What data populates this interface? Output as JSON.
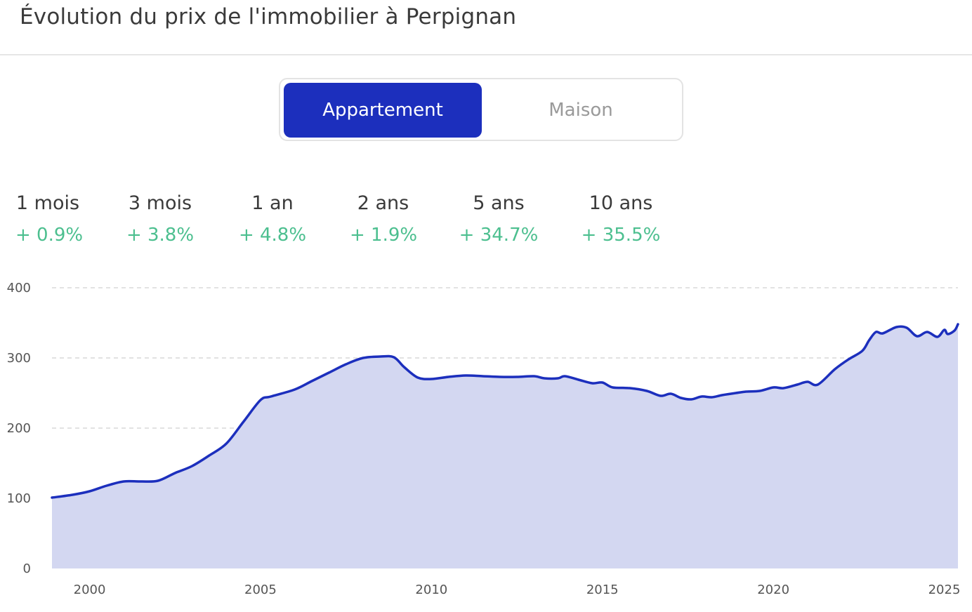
{
  "header": {
    "title": "Évolution du prix de l'immobilier à Perpignan"
  },
  "toggle": {
    "options": [
      "Appartement",
      "Maison"
    ],
    "selected": "Appartement"
  },
  "stats": [
    {
      "label": "1 mois",
      "value": "+ 0.9%"
    },
    {
      "label": "3 mois",
      "value": "+ 3.8%"
    },
    {
      "label": "1 an",
      "value": "+ 4.8%"
    },
    {
      "label": "2 ans",
      "value": "+ 1.9%"
    },
    {
      "label": "5 ans",
      "value": "+ 34.7%"
    },
    {
      "label": "10 ans",
      "value": "+ 35.5%"
    }
  ],
  "colors": {
    "accent": "#1c2fbd",
    "area_fill": "#d3d7f1",
    "positive": "#4cbf8f",
    "grid": "#d9d9d9"
  },
  "chart_data": {
    "type": "area",
    "title": "",
    "xlabel": "",
    "ylabel": "",
    "ylim": [
      0,
      400
    ],
    "xlim": [
      1998.9,
      2025.4
    ],
    "yticks": [
      0,
      100,
      200,
      300,
      400
    ],
    "xticks": [
      2000,
      2005,
      2010,
      2015,
      2020,
      2025
    ],
    "grid": true,
    "series": [
      {
        "x": [
          1998.9,
          1999.5,
          2000.0,
          2000.5,
          2001.0,
          2001.5,
          2002.0,
          2002.5,
          2003.0,
          2003.5,
          2004.0,
          2004.5,
          2005.0,
          2005.3,
          2006.0,
          2006.5,
          2007.0,
          2007.5,
          2008.0,
          2008.5,
          2008.9,
          2009.2,
          2009.6,
          2010.0,
          2010.5,
          2011.0,
          2011.5,
          2012.0,
          2012.5,
          2013.0,
          2013.3,
          2013.7,
          2013.9,
          2014.3,
          2014.7,
          2015.0,
          2015.3,
          2015.8,
          2016.3,
          2016.7,
          2017.0,
          2017.3,
          2017.6,
          2017.9,
          2018.2,
          2018.5,
          2018.9,
          2019.2,
          2019.6,
          2020.0,
          2020.3,
          2020.7,
          2021.0,
          2021.3,
          2021.8,
          2022.2,
          2022.6,
          2022.8,
          2023.0,
          2023.2,
          2023.6,
          2023.9,
          2024.2,
          2024.5,
          2024.8,
          2025.0,
          2025.1,
          2025.3,
          2025.4
        ],
        "values": [
          101,
          105,
          110,
          118,
          124,
          124,
          125,
          136,
          146,
          161,
          178,
          209,
          240,
          245,
          255,
          267,
          279,
          291,
          300,
          302,
          301,
          287,
          272,
          270,
          273,
          275,
          274,
          273,
          273,
          274,
          271,
          271,
          274,
          269,
          264,
          265,
          258,
          257,
          253,
          246,
          249,
          243,
          241,
          245,
          244,
          247,
          250,
          252,
          253,
          258,
          257,
          262,
          266,
          262,
          284,
          298,
          310,
          325,
          337,
          335,
          344,
          343,
          331,
          337,
          330,
          340,
          334,
          339,
          348
        ]
      }
    ]
  }
}
